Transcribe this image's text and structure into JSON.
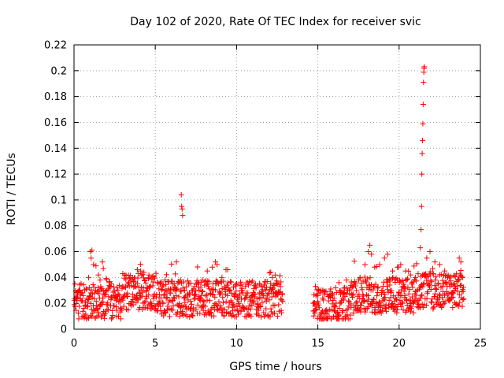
{
  "chart_data": {
    "type": "scatter",
    "title": "Day 102 of 2020, Rate Of TEC Index for receiver svic",
    "xlabel": "GPS time / hours",
    "ylabel": "ROTI / TECUs",
    "xlim": [
      0,
      25
    ],
    "ylim": [
      0,
      0.22
    ],
    "xticks": [
      0,
      5,
      10,
      15,
      20,
      25
    ],
    "xtick_labels": [
      "0",
      "5",
      "10",
      "15",
      "20",
      "25"
    ],
    "yticks": [
      0,
      0.02,
      0.04,
      0.06,
      0.08,
      0.1,
      0.12,
      0.14,
      0.16,
      0.18,
      0.2,
      0.22
    ],
    "ytick_labels": [
      "0",
      "0.02",
      "0.04",
      "0.06",
      "0.08",
      "0.1",
      "0.12",
      "0.14",
      "0.16",
      "0.18",
      "0.2",
      "0.22"
    ],
    "grid": true,
    "marker": "+",
    "color": "#ff0000",
    "gaps": [
      [
        12.85,
        14.7
      ]
    ],
    "series": [
      {
        "name": "ROTI",
        "points": [
          [
            0.05,
            0.035
          ],
          [
            0.15,
            0.025
          ],
          [
            0.3,
            0.03
          ],
          [
            0.5,
            0.022
          ],
          [
            0.7,
            0.018
          ],
          [
            0.9,
            0.04
          ],
          [
            1.0,
            0.06
          ],
          [
            1.05,
            0.055
          ],
          [
            1.1,
            0.061
          ],
          [
            1.2,
            0.05
          ],
          [
            1.35,
            0.049
          ],
          [
            1.5,
            0.042
          ],
          [
            1.6,
            0.038
          ],
          [
            1.75,
            0.052
          ],
          [
            1.8,
            0.047
          ],
          [
            2.0,
            0.03
          ],
          [
            2.3,
            0.025
          ],
          [
            2.6,
            0.022
          ],
          [
            3.0,
            0.043
          ],
          [
            3.3,
            0.035
          ],
          [
            3.6,
            0.04
          ],
          [
            3.9,
            0.046
          ],
          [
            4.1,
            0.045
          ],
          [
            4.3,
            0.044
          ],
          [
            4.6,
            0.04
          ],
          [
            4.9,
            0.041
          ],
          [
            5.3,
            0.035
          ],
          [
            5.6,
            0.038
          ],
          [
            6.0,
            0.037
          ],
          [
            6.3,
            0.052
          ],
          [
            6.55,
            0.038
          ],
          [
            6.6,
            0.104
          ],
          [
            6.62,
            0.095
          ],
          [
            6.65,
            0.093
          ],
          [
            6.68,
            0.088
          ],
          [
            6.8,
            0.03
          ],
          [
            7.1,
            0.028
          ],
          [
            7.4,
            0.033
          ],
          [
            7.7,
            0.03
          ],
          [
            7.9,
            0.038
          ],
          [
            8.2,
            0.045
          ],
          [
            8.5,
            0.048
          ],
          [
            8.7,
            0.052
          ],
          [
            8.8,
            0.05
          ],
          [
            9.1,
            0.04
          ],
          [
            9.35,
            0.046
          ],
          [
            9.6,
            0.03
          ],
          [
            9.9,
            0.027
          ],
          [
            10.3,
            0.03
          ],
          [
            10.6,
            0.028
          ],
          [
            11.0,
            0.022
          ],
          [
            11.4,
            0.028
          ],
          [
            11.8,
            0.03
          ],
          [
            12.1,
            0.044
          ],
          [
            12.2,
            0.04
          ],
          [
            12.5,
            0.035
          ],
          [
            12.7,
            0.033
          ],
          [
            14.75,
            0.02
          ],
          [
            15.0,
            0.026
          ],
          [
            15.3,
            0.024
          ],
          [
            15.6,
            0.027
          ],
          [
            16.0,
            0.024
          ],
          [
            16.3,
            0.036
          ],
          [
            16.6,
            0.028
          ],
          [
            17.0,
            0.032
          ],
          [
            17.3,
            0.035
          ],
          [
            17.6,
            0.04
          ],
          [
            17.9,
            0.05
          ],
          [
            18.1,
            0.06
          ],
          [
            18.2,
            0.065
          ],
          [
            18.3,
            0.058
          ],
          [
            18.5,
            0.048
          ],
          [
            18.8,
            0.05
          ],
          [
            19.1,
            0.055
          ],
          [
            19.3,
            0.058
          ],
          [
            19.6,
            0.045
          ],
          [
            19.9,
            0.048
          ],
          [
            20.1,
            0.05
          ],
          [
            20.4,
            0.045
          ],
          [
            20.7,
            0.042
          ],
          [
            21.0,
            0.04
          ],
          [
            21.3,
            0.063
          ],
          [
            21.35,
            0.077
          ],
          [
            21.38,
            0.095
          ],
          [
            21.4,
            0.12
          ],
          [
            21.42,
            0.136
          ],
          [
            21.44,
            0.146
          ],
          [
            21.46,
            0.159
          ],
          [
            21.48,
            0.174
          ],
          [
            21.5,
            0.191
          ],
          [
            21.52,
            0.199
          ],
          [
            21.53,
            0.202
          ],
          [
            21.55,
            0.203
          ],
          [
            21.7,
            0.055
          ],
          [
            21.9,
            0.06
          ],
          [
            22.2,
            0.052
          ],
          [
            22.5,
            0.05
          ],
          [
            22.8,
            0.045
          ],
          [
            23.1,
            0.035
          ],
          [
            23.4,
            0.03
          ],
          [
            23.7,
            0.055
          ],
          [
            23.8,
            0.052
          ],
          [
            23.9,
            0.04
          ]
        ]
      }
    ]
  }
}
